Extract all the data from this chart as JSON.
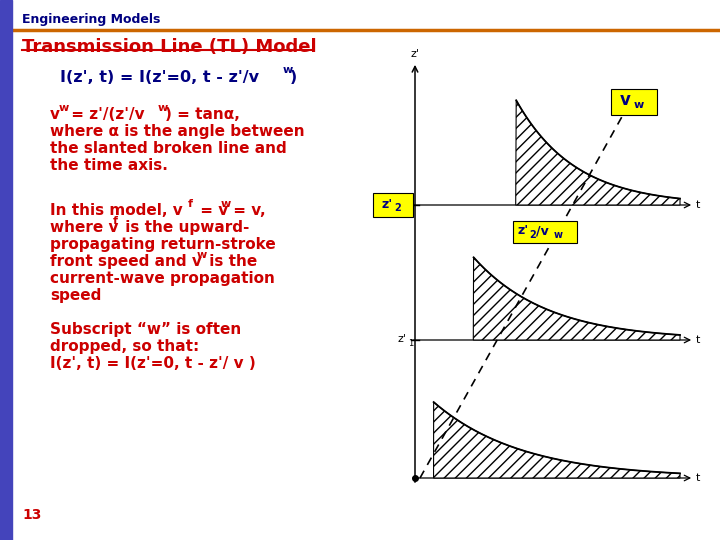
{
  "bg_color": "#ffffff",
  "left_bar_color": "#4444bb",
  "header_text": "Engineering Models",
  "header_color": "#000080",
  "header_underline_color": "#cc6600",
  "title_text": "Transmission Line (TL) Model",
  "title_color": "#cc0000",
  "eq1_color": "#000080",
  "body_color": "#cc0000",
  "footer_text": "13",
  "footer_color": "#cc0000",
  "vw_label_bg": "#ffff00",
  "vw_label_color": "#000080",
  "z2_label_bg": "#ffff00",
  "z2_label_color": "#000080",
  "z2vw_label_bg": "#ffff00",
  "z2vw_label_color": "#000080"
}
